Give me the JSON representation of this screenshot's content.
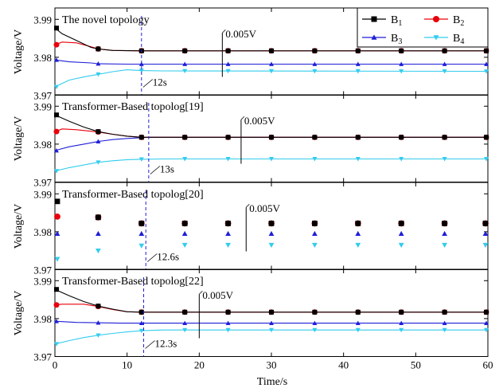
{
  "chart_data": {
    "type": "line",
    "xlabel": "Time/s",
    "xlim": [
      0,
      60
    ],
    "xticks": [
      0,
      10,
      20,
      30,
      40,
      50,
      60
    ],
    "ylabel": "Voltage/V",
    "ylim": [
      3.97,
      3.993
    ],
    "yticks": [
      3.97,
      3.98,
      3.99
    ],
    "legend": {
      "placement": "top-right",
      "entries": [
        {
          "label": "B",
          "sub": "1",
          "color": "#000000",
          "marker": "square"
        },
        {
          "label": "B",
          "sub": "2",
          "color": "#e8000b",
          "marker": "circle"
        },
        {
          "label": "B",
          "sub": "3",
          "color": "#1f1fd8",
          "marker": "triangle"
        },
        {
          "label": "B",
          "sub": "4",
          "color": "#33ccee",
          "marker": "triangle-down"
        }
      ]
    },
    "panels": [
      {
        "title": "The novel topology",
        "style": "line",
        "marker_x": [
          0,
          6,
          12,
          18,
          24,
          30,
          36,
          42,
          48,
          54,
          60
        ],
        "series": [
          {
            "name": "B1",
            "x": [
              0,
              1,
              3,
              5,
              6,
              8,
              12,
              60
            ],
            "y": [
              3.9877,
              3.9862,
              3.9844,
              3.9826,
              3.9822,
              3.9818,
              3.9817,
              3.9817
            ]
          },
          {
            "name": "B2",
            "x": [
              0,
              1,
              3,
              5,
              6,
              8,
              12,
              60
            ],
            "y": [
              3.9833,
              3.984,
              3.9838,
              3.9828,
              3.9822,
              3.9818,
              3.9817,
              3.9817
            ]
          },
          {
            "name": "B3",
            "x": [
              0,
              2,
              5,
              6,
              10,
              12,
              60
            ],
            "y": [
              3.9793,
              3.9788,
              3.9785,
              3.9783,
              3.9782,
              3.9782,
              3.9782
            ]
          },
          {
            "name": "B4",
            "x": [
              0,
              2,
              4,
              6,
              8,
              10,
              12,
              15,
              60
            ],
            "y": [
              3.9722,
              3.974,
              3.9748,
              3.9755,
              3.9762,
              3.9767,
              3.9765,
              3.9764,
              3.9763
            ]
          }
        ],
        "annotations": {
          "settle_x": 12,
          "settle_label": "12s",
          "diff_x": 23.2,
          "diff_label": "0.005V"
        }
      },
      {
        "title": "Transformer-Based topolog[19]",
        "style": "line",
        "marker_x": [
          0,
          6,
          12,
          18,
          24,
          30,
          36,
          42,
          48,
          54,
          60
        ],
        "series": [
          {
            "name": "B1",
            "x": [
              0,
              2,
              4,
              6,
              8,
              10,
              12,
              13,
              60
            ],
            "y": [
              3.9877,
              3.986,
              3.9845,
              3.9833,
              3.9826,
              3.9821,
              3.9818,
              3.9818,
              3.9818
            ]
          },
          {
            "name": "B2",
            "x": [
              0,
              1,
              3,
              6,
              8,
              10,
              12,
              13,
              60
            ],
            "y": [
              3.9833,
              3.984,
              3.9838,
              3.9832,
              3.9826,
              3.9821,
              3.9818,
              3.9818,
              3.9818
            ]
          },
          {
            "name": "B3",
            "x": [
              0,
              2,
              4,
              6,
              8,
              10,
              12,
              13,
              60
            ],
            "y": [
              3.9783,
              3.9793,
              3.98,
              3.9807,
              3.9812,
              3.9815,
              3.9817,
              3.9818,
              3.9818
            ]
          },
          {
            "name": "B4",
            "x": [
              0,
              2,
              4,
              6,
              8,
              10,
              12,
              15,
              60
            ],
            "y": [
              3.9729,
              3.9738,
              3.9745,
              3.9752,
              3.9756,
              3.9759,
              3.976,
              3.9761,
              3.9761
            ]
          }
        ],
        "annotations": {
          "settle_x": 13,
          "settle_label": "13s",
          "diff_x": 25.8,
          "diff_label": "0.005V"
        }
      },
      {
        "title": "Transformer-Based topolog[20]",
        "style": "markers",
        "marker_x": [
          0,
          6,
          12,
          18,
          24,
          30,
          36,
          42,
          48,
          54,
          60
        ],
        "series": [
          {
            "name": "B1",
            "x": [
              0,
              6,
              12,
              18,
              24,
              30,
              36,
              42,
              48,
              54,
              60
            ],
            "y": [
              3.988,
              3.9838,
              3.9822,
              3.9822,
              3.9822,
              3.9822,
              3.9822,
              3.9822,
              3.9822,
              3.9822,
              3.9822
            ]
          },
          {
            "name": "B2",
            "x": [
              0,
              6,
              12,
              18,
              24,
              30,
              36,
              42,
              48,
              54,
              60
            ],
            "y": [
              3.984,
              3.9838,
              3.9822,
              3.9822,
              3.9822,
              3.9822,
              3.9822,
              3.9822,
              3.9822,
              3.9822,
              3.9822
            ]
          },
          {
            "name": "B3",
            "x": [
              0,
              6,
              12,
              18,
              24,
              30,
              36,
              42,
              48,
              54,
              60
            ],
            "y": [
              3.9795,
              3.9795,
              3.9795,
              3.9795,
              3.9795,
              3.9795,
              3.9795,
              3.9795,
              3.9795,
              3.9795,
              3.9795
            ]
          },
          {
            "name": "B4",
            "x": [
              0,
              6,
              12,
              18,
              24,
              30,
              36,
              42,
              48,
              54,
              60
            ],
            "y": [
              3.9728,
              3.975,
              3.9763,
              3.9765,
              3.9765,
              3.9765,
              3.9765,
              3.9765,
              3.9765,
              3.9765,
              3.9765
            ]
          }
        ],
        "annotations": {
          "settle_x": 12.6,
          "settle_label": "12.6s",
          "diff_x": 26.5,
          "diff_label": "0.005V"
        }
      },
      {
        "title": "Transformer-Based topolog[22]",
        "style": "line",
        "marker_x": [
          0,
          6,
          12,
          18,
          24,
          30,
          36,
          42,
          48,
          54,
          60
        ],
        "series": [
          {
            "name": "B1",
            "x": [
              0,
              2,
              4,
              6,
              8,
              10,
              12,
              60
            ],
            "y": [
              3.9877,
              3.986,
              3.9845,
              3.9833,
              3.9825,
              3.9818,
              3.9817,
              3.9817
            ]
          },
          {
            "name": "B2",
            "x": [
              0,
              1,
              4,
              6,
              8,
              10,
              12,
              60
            ],
            "y": [
              3.9836,
              3.9838,
              3.9838,
              3.9832,
              3.9824,
              3.9818,
              3.9817,
              3.9817
            ]
          },
          {
            "name": "B3",
            "x": [
              0,
              3,
              6,
              9,
              12,
              60
            ],
            "y": [
              3.9793,
              3.979,
              3.9789,
              3.9788,
              3.9788,
              3.9788
            ]
          },
          {
            "name": "B4",
            "x": [
              0,
              2,
              4,
              6,
              8,
              10,
              12,
              15,
              60
            ],
            "y": [
              3.9733,
              3.9742,
              3.975,
              3.9756,
              3.9761,
              3.9765,
              3.9768,
              3.977,
              3.977
            ]
          }
        ],
        "annotations": {
          "settle_x": 12.3,
          "settle_label": "12.3s",
          "diff_x": 20,
          "diff_label": "0.005V"
        }
      }
    ]
  }
}
